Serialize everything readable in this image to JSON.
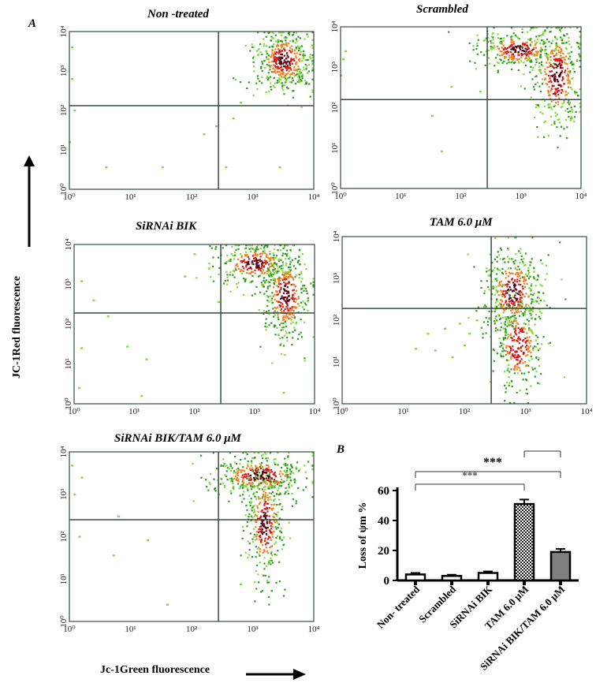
{
  "panel_labels": {
    "a": "A",
    "b": "B"
  },
  "axis_titles": {
    "y": "JC-1Red  fluorescence",
    "x": "Jc-1Green  fluorescence"
  },
  "flow_plots": [
    {
      "title": "Non -treated",
      "xticks": [
        "10⁰",
        "10¹",
        "10²",
        "10³",
        "10⁴"
      ],
      "yticks": [
        "10⁰",
        "10¹",
        "10²",
        "10³",
        "10⁴"
      ]
    },
    {
      "title": "Scrambled",
      "xticks": [
        "10⁰",
        "10¹",
        "10²",
        "10³",
        "10⁴"
      ],
      "yticks": [
        "10⁰",
        "10¹",
        "10²",
        "10³",
        "10⁴"
      ]
    },
    {
      "title": "SiRNAi BIK",
      "xticks": [
        "10⁰",
        "10¹",
        "10²",
        "10³",
        "10⁴"
      ],
      "yticks": [
        "10⁰",
        "10¹",
        "10²",
        "10³",
        "10⁴"
      ]
    },
    {
      "title": "TAM  6.0 μM",
      "xticks": [
        "10⁰",
        "10¹",
        "10²",
        "10³",
        "10⁴"
      ],
      "yticks": [
        "10⁰",
        "10¹",
        "10²",
        "10³",
        "10⁴"
      ]
    },
    {
      "title": "SiRNAi BIK/TAM 6.0 μM",
      "xticks": [
        "10⁰",
        "10¹",
        "10²",
        "10³",
        "10⁴"
      ],
      "yticks": [
        "10⁰",
        "10¹",
        "10²",
        "10³",
        "10⁴"
      ]
    }
  ],
  "colors": {
    "dot_light": "#7ddc3a",
    "dot_dark": "#2e9a1e",
    "contour_orange": "#f08020",
    "contour_red": "#d81818",
    "contour_dark": "#5a0010",
    "gate_line": "#3a4a40",
    "bar_fill_gray": "#7f7f7f"
  },
  "chart_data": {
    "type": "bar",
    "categories": [
      "Non- treated",
      "Scrambled",
      "SiRNAi BIK",
      "TAM 6.0 μM",
      "SiRNAi BIK/TAM 6.0 μM"
    ],
    "values": [
      4,
      3,
      5,
      51,
      19
    ],
    "errors": [
      1,
      0.8,
      1,
      3,
      2
    ],
    "fills": [
      "white",
      "white",
      "white",
      "checker",
      "gray"
    ],
    "ylabel": "Loss of ψm %",
    "ylim": [
      0,
      60
    ],
    "yticks": [
      0,
      20,
      40,
      60
    ],
    "significance": [
      {
        "label": "***",
        "from": 0,
        "to": 3
      },
      {
        "label": "***",
        "from": 3,
        "to": 4
      },
      {
        "label": "***",
        "from": 0,
        "to": 4
      }
    ]
  }
}
